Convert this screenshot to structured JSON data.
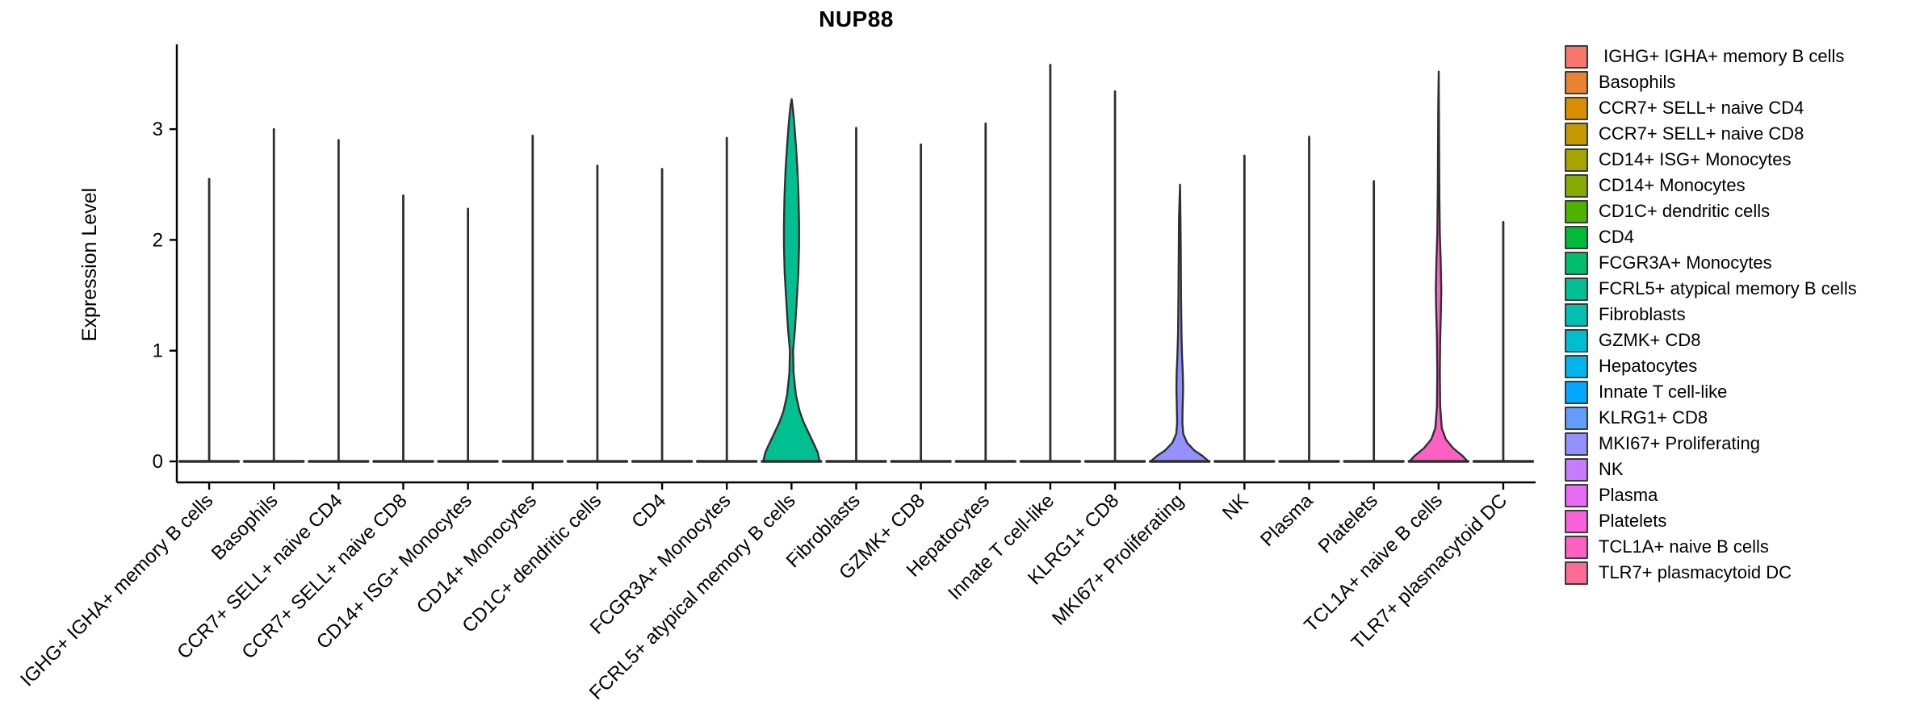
{
  "chart_data": {
    "type": "violin",
    "title": "NUP88",
    "xlabel": "",
    "ylabel": "Expression Level",
    "yticks": [
      0,
      1,
      2,
      3
    ],
    "ylim": [
      0,
      3.77
    ],
    "grid": false,
    "legend_position": "right",
    "axis_color": "#000000",
    "outline_color": "#2F2F2F",
    "series": [
      {
        "name": "IGHG+ IGHA+ memory B cells",
        "legend_label": " IGHG+ IGHA+ memory B cells",
        "color": "#F8766D",
        "max": 2.55,
        "shape": null
      },
      {
        "name": "Basophils",
        "legend_label": "Basophils",
        "color": "#EA8331",
        "max": 3.0,
        "shape": null
      },
      {
        "name": "CCR7+ SELL+ naive CD4",
        "legend_label": "CCR7+ SELL+ naive CD4",
        "color": "#DB8E00",
        "max": 2.9,
        "shape": null
      },
      {
        "name": "CCR7+ SELL+ naive CD8",
        "legend_label": "CCR7+ SELL+ naive CD8",
        "color": "#C49A00",
        "max": 2.4,
        "shape": null
      },
      {
        "name": "CD14+ ISG+ Monocytes",
        "legend_label": "CD14+ ISG+ Monocytes",
        "color": "#A6A500",
        "max": 2.28,
        "shape": null
      },
      {
        "name": "CD14+ Monocytes",
        "legend_label": "CD14+ Monocytes",
        "color": "#87AB00",
        "max": 2.94,
        "shape": null
      },
      {
        "name": "CD1C+ dendritic cells",
        "legend_label": "CD1C+ dendritic cells",
        "color": "#4CB400",
        "max": 2.67,
        "shape": null
      },
      {
        "name": "CD4",
        "legend_label": "CD4",
        "color": "#00BA38",
        "max": 2.64,
        "shape": null
      },
      {
        "name": "FCGR3A+ Monocytes",
        "legend_label": "FCGR3A+ Monocytes",
        "color": "#00BE6C",
        "max": 2.92,
        "shape": null
      },
      {
        "name": "FCRL5+ atypical memory B cells",
        "legend_label": "FCRL5+ atypical memory B cells",
        "color": "#00C091",
        "max": 3.27,
        "shape": [
          [
            0,
            0.97
          ],
          [
            0.08,
            0.9
          ],
          [
            0.15,
            0.78
          ],
          [
            0.25,
            0.6
          ],
          [
            0.35,
            0.42
          ],
          [
            0.45,
            0.28
          ],
          [
            0.6,
            0.15
          ],
          [
            0.8,
            0.07
          ],
          [
            1.0,
            0.055
          ],
          [
            1.2,
            0.12
          ],
          [
            1.45,
            0.18
          ],
          [
            1.7,
            0.235
          ],
          [
            1.95,
            0.26
          ],
          [
            2.15,
            0.26
          ],
          [
            2.4,
            0.24
          ],
          [
            2.65,
            0.2
          ],
          [
            2.85,
            0.15
          ],
          [
            3.0,
            0.11
          ],
          [
            3.12,
            0.07
          ],
          [
            3.22,
            0.03
          ],
          [
            3.27,
            0.008
          ]
        ]
      },
      {
        "name": "Fibroblasts",
        "legend_label": "Fibroblasts",
        "color": "#00C1B2",
        "max": 3.01,
        "shape": null
      },
      {
        "name": "GZMK+ CD8",
        "legend_label": "GZMK+ CD8",
        "color": "#00BDD2",
        "max": 2.86,
        "shape": null
      },
      {
        "name": "Hepatocytes",
        "legend_label": "Hepatocytes",
        "color": "#00B5EC",
        "max": 3.05,
        "shape": null
      },
      {
        "name": "Innate T cell-like",
        "legend_label": "Innate T cell-like",
        "color": "#00A9FF",
        "max": 3.58,
        "shape": null
      },
      {
        "name": "KLRG1+ CD8",
        "legend_label": "KLRG1+ CD8",
        "color": "#619CFF",
        "max": 3.34,
        "shape": null
      },
      {
        "name": "MKI67+ Proliferating",
        "legend_label": "MKI67+ Proliferating",
        "color": "#9590FF",
        "max": 2.5,
        "shape": [
          [
            0,
            1.0
          ],
          [
            0.05,
            0.78
          ],
          [
            0.1,
            0.5
          ],
          [
            0.17,
            0.25
          ],
          [
            0.25,
            0.12
          ],
          [
            0.35,
            0.09
          ],
          [
            0.5,
            0.1
          ],
          [
            0.65,
            0.115
          ],
          [
            0.8,
            0.105
          ],
          [
            0.95,
            0.08
          ],
          [
            1.15,
            0.06
          ],
          [
            1.5,
            0.045
          ],
          [
            1.9,
            0.035
          ],
          [
            2.2,
            0.025
          ],
          [
            2.5,
            0.01
          ]
        ]
      },
      {
        "name": "NK",
        "legend_label": "NK",
        "color": "#C77CFF",
        "max": 2.76,
        "shape": null
      },
      {
        "name": "Plasma",
        "legend_label": "Plasma",
        "color": "#E76BF3",
        "max": 2.93,
        "shape": null
      },
      {
        "name": "Platelets",
        "legend_label": "Platelets",
        "color": "#FA62DB",
        "max": 2.53,
        "shape": null
      },
      {
        "name": "TCL1A+ naive B cells",
        "legend_label": "TCL1A+ naive B cells",
        "color": "#FF61C3",
        "max": 3.52,
        "shape": [
          [
            0,
            1.0
          ],
          [
            0.05,
            0.82
          ],
          [
            0.12,
            0.5
          ],
          [
            0.2,
            0.25
          ],
          [
            0.3,
            0.11
          ],
          [
            0.5,
            0.055
          ],
          [
            0.8,
            0.045
          ],
          [
            1.1,
            0.055
          ],
          [
            1.35,
            0.08
          ],
          [
            1.55,
            0.095
          ],
          [
            1.8,
            0.075
          ],
          [
            2.05,
            0.045
          ],
          [
            2.4,
            0.028
          ],
          [
            2.8,
            0.02
          ],
          [
            3.2,
            0.012
          ],
          [
            3.52,
            0.005
          ]
        ]
      },
      {
        "name": "TLR7+ plasmacytoid DC",
        "legend_label": "TLR7+ plasmacytoid DC",
        "color": "#FF6B94",
        "max": 2.16,
        "shape": null
      }
    ]
  }
}
